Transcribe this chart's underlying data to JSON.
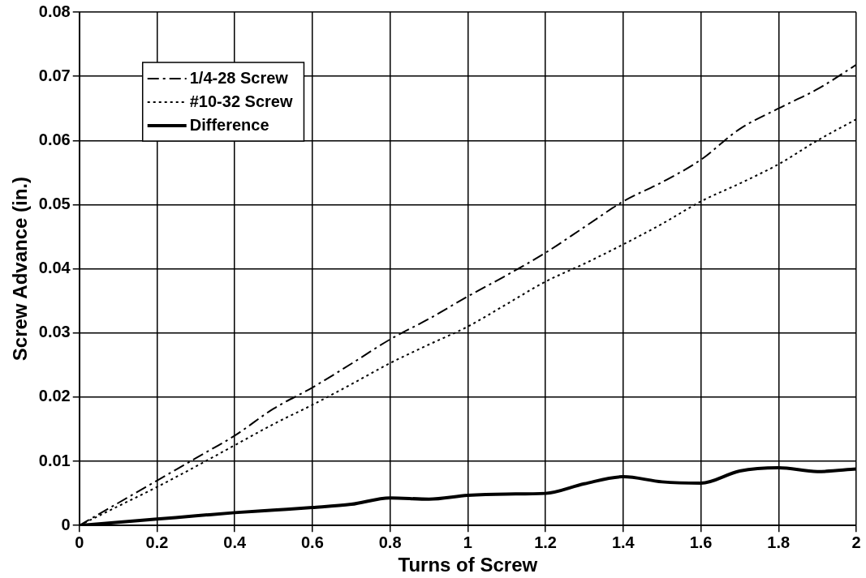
{
  "chart_data": {
    "type": "line",
    "xlabel": "Turns of Screw",
    "ylabel": "Screw Advance (in.)",
    "x": [
      0,
      0.1,
      0.2,
      0.3,
      0.4,
      0.5,
      0.6,
      0.7,
      0.8,
      0.9,
      1.0,
      1.1,
      1.2,
      1.3,
      1.4,
      1.5,
      1.6,
      1.7,
      1.8,
      1.9,
      2.0
    ],
    "series": [
      {
        "name": "1/4-28 Screw",
        "color": "#000000",
        "line_style": "dashed",
        "values": [
          0,
          0.0035,
          0.007,
          0.0105,
          0.014,
          0.0182,
          0.0215,
          0.0252,
          0.029,
          0.0322,
          0.0357,
          0.039,
          0.0425,
          0.0465,
          0.0505,
          0.0535,
          0.057,
          0.0618,
          0.065,
          0.068,
          0.0718
        ]
      },
      {
        "name": "#10-32 Screw",
        "color": "#000000",
        "line_style": "dotted",
        "values": [
          0,
          0.003,
          0.006,
          0.0092,
          0.0125,
          0.0158,
          0.0188,
          0.022,
          0.0253,
          0.0282,
          0.031,
          0.0345,
          0.038,
          0.0408,
          0.0438,
          0.047,
          0.0505,
          0.0533,
          0.0563,
          0.06,
          0.0633
        ]
      },
      {
        "name": "Difference",
        "color": "#000000",
        "line_style": "solid",
        "values": [
          0,
          0.0005,
          0.001,
          0.0015,
          0.002,
          0.0024,
          0.0028,
          0.0033,
          0.0043,
          0.0041,
          0.0047,
          0.0049,
          0.005,
          0.0065,
          0.0076,
          0.0068,
          0.0066,
          0.0085,
          0.009,
          0.0084,
          0.0088
        ]
      }
    ],
    "xlim": [
      0,
      2
    ],
    "xticks": [
      0,
      0.2,
      0.4,
      0.6,
      0.8,
      1,
      1.2,
      1.4,
      1.6,
      1.8,
      2
    ],
    "ylim": [
      0,
      0.08
    ],
    "yticks": [
      0,
      0.01,
      0.02,
      0.03,
      0.04,
      0.05,
      0.06,
      0.07,
      0.08
    ],
    "grid": true,
    "legend": "top left",
    "marker": "none"
  }
}
